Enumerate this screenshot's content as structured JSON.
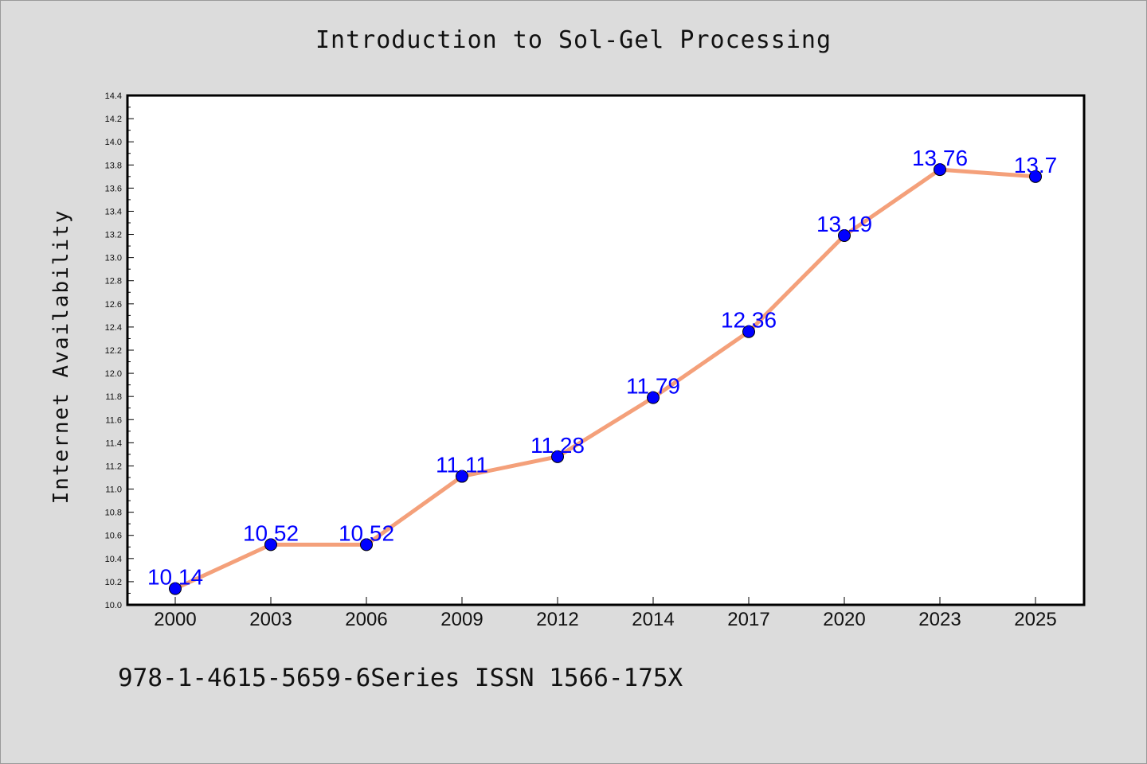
{
  "title": "Introduction to Sol-Gel Processing",
  "footer": "978-1-4615-5659-6Series ISSN 1566-175X",
  "colors": {
    "background": "#dcdcdc",
    "plot_area": "#ffffff",
    "line": "#f4a07a",
    "marker": "#0000ff",
    "data_label": "#0000ff"
  },
  "chart_data": {
    "type": "line",
    "title": "Introduction to Sol-Gel Processing",
    "xlabel": "",
    "ylabel": "Internet Availability",
    "categories": [
      "2000",
      "2003",
      "2006",
      "2009",
      "2012",
      "2014",
      "2017",
      "2020",
      "2023",
      "2025"
    ],
    "series": [
      {
        "values": [
          10.14,
          10.52,
          10.52,
          11.11,
          11.28,
          11.79,
          12.36,
          13.19,
          13.76,
          13.7
        ],
        "labels": [
          "10.14",
          "10.52",
          "10.52",
          "11.11",
          "11.28",
          "11.79",
          "12.36",
          "13.19",
          "13.76",
          "13.7"
        ]
      }
    ],
    "ylim": [
      10.0,
      14.4
    ],
    "yticks": [
      "10.0",
      "10.2",
      "10.4",
      "10.6",
      "10.8",
      "11.0",
      "11.2",
      "11.4",
      "11.6",
      "11.8",
      "12.0",
      "12.2",
      "12.4",
      "12.6",
      "12.8",
      "13.0",
      "13.2",
      "13.4",
      "13.6",
      "13.8",
      "14.0",
      "14.2",
      "14.4"
    ],
    "grid": false,
    "legend": "none"
  }
}
